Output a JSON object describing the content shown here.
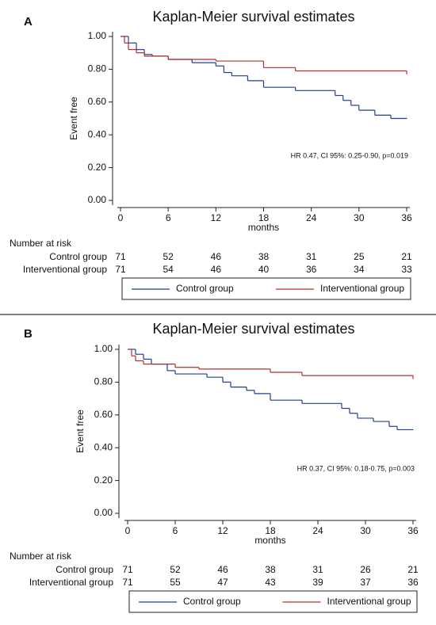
{
  "chart_data": [
    {
      "type": "step",
      "panel": "A",
      "title": "Kaplan-Meier survival estimates",
      "ylabel": "Event free",
      "xlabel": "months",
      "annotation": "HR 0.47, CI 95%: 0.25-0.90, p=0.019",
      "xlim": [
        0,
        36
      ],
      "xticks": [
        0,
        6,
        12,
        18,
        24,
        30,
        36
      ],
      "ylim": [
        0,
        1
      ],
      "yticks": [
        {
          "value": 0,
          "label": "0.00"
        },
        {
          "value": 0.2,
          "label": "0.20"
        },
        {
          "value": 0.4,
          "label": "0.40"
        },
        {
          "value": 0.6,
          "label": "0.60"
        },
        {
          "value": 0.8,
          "label": "0.80"
        },
        {
          "value": 1,
          "label": "1.00"
        }
      ],
      "series": [
        {
          "name": "Control group",
          "color": "#1f3f8f",
          "x": [
            0,
            1,
            2,
            3,
            4,
            6,
            9,
            12,
            13,
            14,
            16,
            18,
            22,
            27,
            28,
            29,
            30,
            32,
            34,
            36
          ],
          "values": [
            1.0,
            0.96,
            0.92,
            0.89,
            0.88,
            0.86,
            0.84,
            0.82,
            0.78,
            0.76,
            0.73,
            0.69,
            0.67,
            0.64,
            0.61,
            0.58,
            0.55,
            0.52,
            0.5,
            0.5
          ]
        },
        {
          "name": "Interventional group",
          "color": "#b03030",
          "x": [
            0,
            0.5,
            1,
            2,
            3,
            6,
            12,
            18,
            22,
            35.8,
            36
          ],
          "values": [
            1.0,
            0.96,
            0.92,
            0.9,
            0.88,
            0.86,
            0.85,
            0.81,
            0.79,
            0.79,
            0.77
          ]
        }
      ],
      "risk_table": {
        "title": "Number at risk",
        "rows": [
          {
            "name": "Control group",
            "values": [
              71,
              52,
              46,
              38,
              31,
              25,
              21
            ]
          },
          {
            "name": "Interventional group",
            "values": [
              71,
              54,
              46,
              40,
              36,
              34,
              33
            ]
          }
        ]
      }
    },
    {
      "type": "step",
      "panel": "B",
      "title": "Kaplan-Meier survival estimates",
      "ylabel": "Event free",
      "xlabel": "months",
      "annotation": "HR 0.37, CI 95%: 0.18-0.75, p=0.003",
      "xlim": [
        0,
        36
      ],
      "xticks": [
        0,
        6,
        12,
        18,
        24,
        30,
        36
      ],
      "ylim": [
        0,
        1
      ],
      "yticks": [
        {
          "value": 0,
          "label": "0.00"
        },
        {
          "value": 0.2,
          "label": "0.20"
        },
        {
          "value": 0.4,
          "label": "0.40"
        },
        {
          "value": 0.6,
          "label": "0.60"
        },
        {
          "value": 0.8,
          "label": "0.80"
        },
        {
          "value": 1,
          "label": "1.00"
        }
      ],
      "series": [
        {
          "name": "Control group",
          "color": "#1f3f8f",
          "x": [
            0,
            1,
            2,
            3,
            5,
            6,
            10,
            12,
            13,
            15,
            16,
            18,
            22,
            27,
            28,
            29,
            31,
            33,
            34,
            36
          ],
          "values": [
            1.0,
            0.97,
            0.94,
            0.91,
            0.87,
            0.85,
            0.83,
            0.8,
            0.77,
            0.75,
            0.73,
            0.69,
            0.67,
            0.64,
            0.61,
            0.58,
            0.56,
            0.53,
            0.51,
            0.51
          ]
        },
        {
          "name": "Interventional group",
          "color": "#b03030",
          "x": [
            0,
            0.5,
            1,
            2,
            6,
            9,
            18,
            22,
            35.8,
            36
          ],
          "values": [
            1.0,
            0.96,
            0.93,
            0.91,
            0.89,
            0.88,
            0.86,
            0.84,
            0.84,
            0.82
          ]
        }
      ],
      "risk_table": {
        "title": "Number at risk",
        "rows": [
          {
            "name": "Control group",
            "values": [
              71,
              52,
              46,
              38,
              31,
              26,
              21
            ]
          },
          {
            "name": "Interventional group",
            "values": [
              71,
              55,
              47,
              43,
              39,
              37,
              36
            ]
          }
        ]
      }
    }
  ]
}
